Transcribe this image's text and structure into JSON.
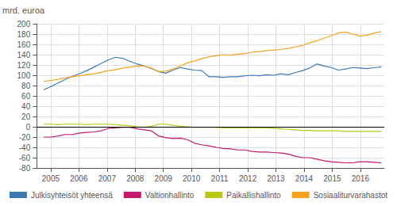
{
  "chart_data": {
    "type": "line",
    "ylabel": "mrd. euroa",
    "x": [
      2004.75,
      2005.0053,
      2005.2606,
      2005.516,
      2005.7713,
      2006.0266,
      2006.2819,
      2006.5372,
      2006.7926,
      2007.0479,
      2007.3032,
      2007.5585,
      2007.8138,
      2008.0691,
      2008.3245,
      2008.5798,
      2008.8351,
      2009.0904,
      2009.3457,
      2009.6011,
      2009.8564,
      2010.1117,
      2010.367,
      2010.6223,
      2010.8777,
      2011.133,
      2011.3883,
      2011.6436,
      2011.8989,
      2012.1543,
      2012.4096,
      2012.6649,
      2012.9202,
      2013.1755,
      2013.4309,
      2013.6862,
      2013.9415,
      2014.1968,
      2014.4521,
      2014.7074,
      2014.9628,
      2015.2181,
      2015.4734,
      2015.7287,
      2015.984,
      2016.2394,
      2016.4947,
      2016.75
    ],
    "series": [
      {
        "name": "Julkisyhteisöt yhteensä",
        "color": "#3d7ab5",
        "values": [
          72,
          78,
          85,
          92,
          98,
          103,
          109,
          116,
          123,
          130,
          135,
          133,
          127,
          122,
          118,
          113,
          107,
          104,
          110,
          115,
          112,
          110,
          109,
          97,
          97,
          96,
          97,
          97,
          99,
          100,
          99,
          101,
          100,
          103,
          101,
          105,
          109,
          114,
          122,
          118,
          115,
          110,
          112,
          115,
          114,
          113,
          115,
          116
        ]
      },
      {
        "name": "Valtionhallinto",
        "color": "#c4186c",
        "values": [
          -20,
          -20,
          -18,
          -15,
          -15,
          -12,
          -11,
          -10,
          -8,
          -3,
          -2,
          -1,
          -1,
          -4,
          -6,
          -8,
          -18,
          -21,
          -23,
          -22,
          -25,
          -32,
          -35,
          -37,
          -40,
          -42,
          -43,
          -45,
          -45,
          -48,
          -49,
          -49,
          -50,
          -51,
          -53,
          -57,
          -60,
          -60,
          -63,
          -66,
          -68,
          -69,
          -70,
          -70,
          -68,
          -68,
          -69,
          -70
        ]
      },
      {
        "name": "Paikallishallinto",
        "color": "#bac916",
        "values": [
          5,
          5,
          4,
          5,
          5,
          5,
          4,
          5,
          5,
          5,
          4,
          3,
          2,
          0,
          -1,
          1,
          5,
          5,
          3,
          1,
          0,
          -1,
          -1,
          -1,
          -1,
          -2,
          -2,
          -2,
          -2,
          -2,
          -2,
          -2,
          -3,
          -4,
          -5,
          -6,
          -7,
          -7,
          -8,
          -8,
          -8,
          -8,
          -9,
          -9,
          -9,
          -9,
          -9,
          -9
        ]
      },
      {
        "name": "Sosiaaliturvarahastot",
        "color": "#f5a21e",
        "values": [
          88,
          90,
          92,
          95,
          97,
          99,
          101,
          103,
          106,
          109,
          111,
          114,
          116,
          118,
          118,
          114,
          107,
          108,
          112,
          118,
          124,
          128,
          132,
          136,
          138,
          140,
          139,
          141,
          142,
          145,
          146,
          148,
          149,
          150,
          152,
          155,
          158,
          163,
          167,
          172,
          177,
          182,
          184,
          180,
          176,
          178,
          182,
          185
        ]
      }
    ],
    "xlim": [
      2004.5,
      2016.85
    ],
    "xticks": [
      2005,
      2006,
      2007,
      2008,
      2009,
      2010,
      2011,
      2012,
      2013,
      2014,
      2015,
      2016
    ],
    "ylim": [
      -80,
      200
    ],
    "yticks": [
      -80,
      -60,
      -40,
      -20,
      0,
      20,
      40,
      60,
      80,
      100,
      120,
      140,
      160,
      180,
      200
    ],
    "grid": true,
    "legend": "bottom"
  }
}
